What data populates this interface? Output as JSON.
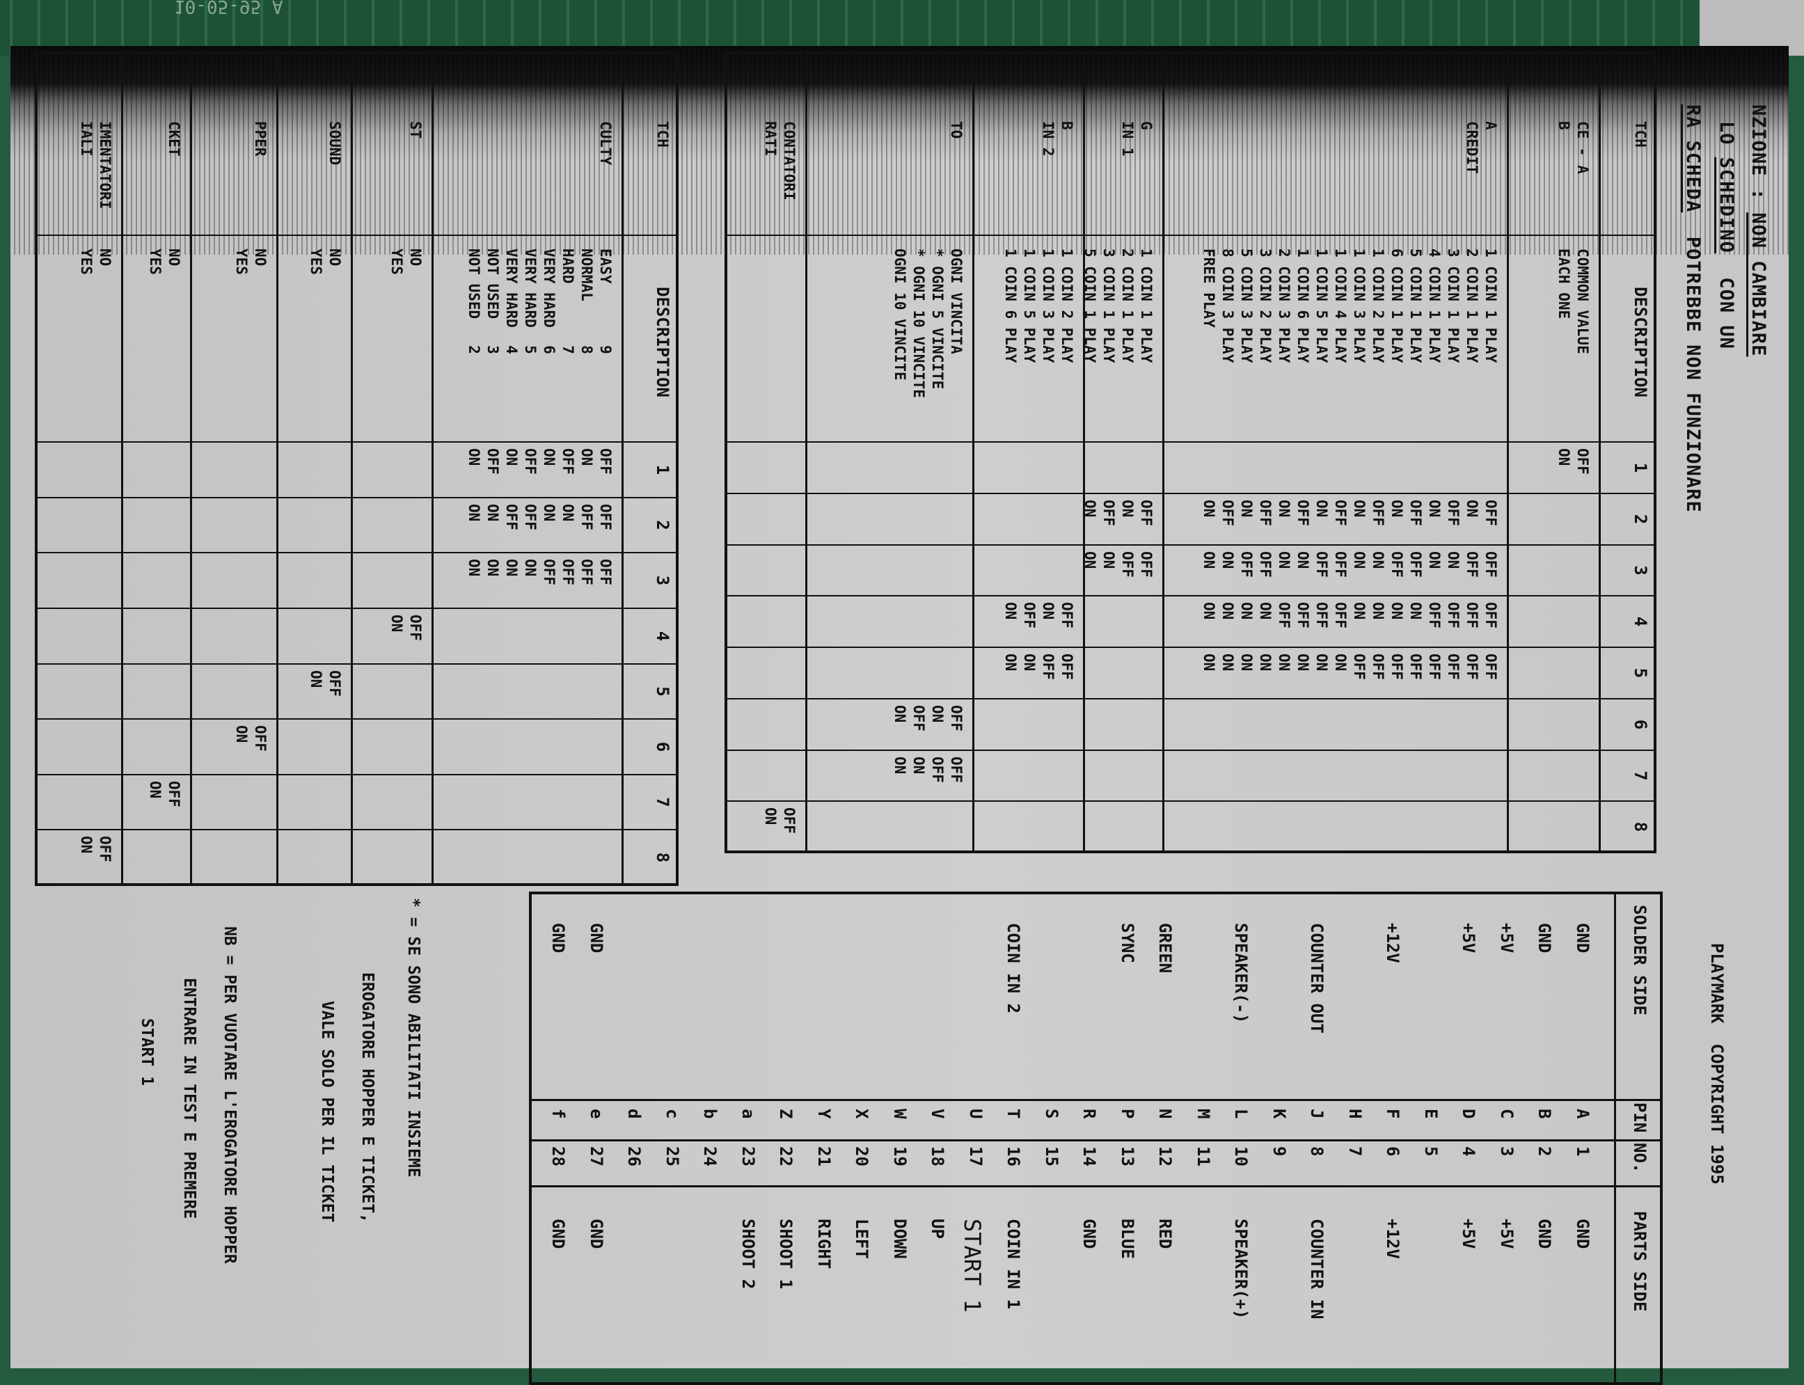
{
  "pcb_label": "10-05-95 A",
  "notice": {
    "line1_a": "NZIONE : ",
    "line1_b": "NON CAMBIARE",
    "line2_a": "LO ",
    "line2_b": "SCHEDINO",
    "line2_c": "  CON UN",
    "line3_a": "RA SCHEDA",
    "line3_b": "  POTREBBE NON FUNZIONARE"
  },
  "copyright": "PLAYMARK  COPYRIGHT 1995",
  "dip_a": {
    "header": {
      "label": [
        "TCH"
      ],
      "description": [
        "DESCRIPTION"
      ],
      "switches": [
        "1",
        "2",
        "3",
        "4",
        "5",
        "6",
        "7",
        "8"
      ]
    },
    "rows": [
      {
        "label": [
          "CE - A",
          "B"
        ],
        "description": [
          "COMMON VALUE",
          "EACH ONE"
        ],
        "cells": [
          [
            "OFF",
            "ON"
          ],
          [],
          [],
          [],
          [],
          [],
          [],
          []
        ]
      },
      {
        "label": [
          "A",
          "CREDIT"
        ],
        "description": [
          "1 COIN 1 PLAY",
          "2 COIN 1 PLAY",
          "3 COIN 1 PLAY",
          "4 COIN 1 PLAY",
          "5 COIN 1 PLAY",
          "6 COIN 1 PLAY",
          "1 COIN 2 PLAY",
          "1 COIN 3 PLAY",
          "1 COIN 4 PLAY",
          "1 COIN 5 PLAY",
          "1 COIN 6 PLAY",
          "2 COIN 3 PLAY",
          "3 COIN 2 PLAY",
          "5 COIN 3 PLAY",
          "8 COIN 3 PLAY",
          "FREE PLAY"
        ],
        "cells": [
          [],
          [
            "OFF",
            "ON",
            "OFF",
            "ON",
            "OFF",
            "ON",
            "OFF",
            "ON",
            "OFF",
            "ON",
            "OFF",
            "ON",
            "OFF",
            "ON",
            "OFF",
            "ON"
          ],
          [
            "OFF",
            "OFF",
            "ON",
            "ON",
            "OFF",
            "OFF",
            "ON",
            "ON",
            "OFF",
            "OFF",
            "ON",
            "ON",
            "OFF",
            "OFF",
            "ON",
            "ON"
          ],
          [
            "OFF",
            "OFF",
            "OFF",
            "OFF",
            "ON",
            "ON",
            "ON",
            "ON",
            "OFF",
            "OFF",
            "OFF",
            "OFF",
            "ON",
            "ON",
            "ON",
            "ON"
          ],
          [
            "OFF",
            "OFF",
            "OFF",
            "OFF",
            "OFF",
            "OFF",
            "OFF",
            "OFF",
            "ON",
            "ON",
            "ON",
            "ON",
            "ON",
            "ON",
            "ON",
            "ON"
          ],
          [],
          [],
          []
        ]
      },
      {
        "label": [
          "G",
          "IN 1"
        ],
        "description": [
          "1 COIN 1 PLAY",
          "2 COIN 1 PLAY",
          "3 COIN 1 PLAY",
          "5 COIN 1 PLAY"
        ],
        "cells": [
          [],
          [
            "OFF",
            "ON",
            "OFF",
            "ON"
          ],
          [
            "OFF",
            "OFF",
            "ON",
            "ON"
          ],
          [],
          [],
          [],
          [],
          []
        ]
      },
      {
        "label": [
          "B",
          "IN 2"
        ],
        "description": [
          "1 COIN 2 PLAY",
          "1 COIN 3 PLAY",
          "1 COIN 5 PLAY",
          "1 COIN 6 PLAY"
        ],
        "cells": [
          [],
          [],
          [],
          [
            "OFF",
            "ON",
            "OFF",
            "ON"
          ],
          [
            "OFF",
            "OFF",
            "ON",
            "ON"
          ],
          [],
          [],
          []
        ]
      },
      {
        "label": [
          "TO"
        ],
        "description": [
          "OGNI VINCITA",
          "* OGNI 5 VINCITE",
          "* OGNI 10 VINCITE",
          "OGNI 10 VINCITE"
        ],
        "cells": [
          [],
          [],
          [],
          [],
          [],
          [
            "OFF",
            "ON",
            "OFF",
            "ON"
          ],
          [
            "OFF",
            "OFF",
            "ON",
            "ON"
          ],
          []
        ]
      },
      {
        "label": [
          "CONTATORI",
          "RATI"
        ],
        "description": [],
        "cells": [
          [],
          [],
          [],
          [],
          [],
          [],
          [],
          [
            "OFF",
            "ON"
          ]
        ]
      }
    ]
  },
  "dip_b": {
    "header": {
      "label": [
        "TCH"
      ],
      "description": [
        "DESCRIPTION"
      ],
      "switches": [
        "1",
        "2",
        "3",
        "4",
        "5",
        "6",
        "7",
        "8"
      ]
    },
    "rows": [
      {
        "label": [
          "CULTY"
        ],
        "description": [
          "EASY       9",
          "NORMAL     8",
          "HARD       7",
          "VERY HARD  6",
          "VERY HARD  5",
          "VERY HARD  4",
          "NOT USED   3",
          "NOT USED   2"
        ],
        "cells": [
          [
            "OFF",
            "ON",
            "OFF",
            "ON",
            "OFF",
            "ON",
            "OFF",
            "ON"
          ],
          [
            "OFF",
            "OFF",
            "ON",
            "ON",
            "OFF",
            "OFF",
            "ON",
            "ON"
          ],
          [
            "OFF",
            "OFF",
            "OFF",
            "OFF",
            "ON",
            "ON",
            "ON",
            "ON"
          ],
          [],
          [],
          [],
          [],
          []
        ]
      },
      {
        "label": [
          "ST"
        ],
        "description": [
          "NO",
          "YES"
        ],
        "cells": [
          [],
          [],
          [],
          [
            "OFF",
            "ON"
          ],
          [],
          [],
          [],
          []
        ]
      },
      {
        "label": [
          "SOUND"
        ],
        "description": [
          "NO",
          "YES"
        ],
        "cells": [
          [],
          [],
          [],
          [],
          [
            "OFF",
            "ON"
          ],
          [],
          [],
          []
        ]
      },
      {
        "label": [
          "PPER"
        ],
        "description": [
          "NO",
          "YES"
        ],
        "cells": [
          [],
          [],
          [],
          [],
          [],
          [
            "OFF",
            "ON"
          ],
          [],
          []
        ]
      },
      {
        "label": [
          "CKET"
        ],
        "description": [
          "NO",
          "YES"
        ],
        "cells": [
          [],
          [],
          [],
          [],
          [],
          [],
          [
            "OFF",
            "ON"
          ],
          []
        ]
      },
      {
        "label": [
          "IMENTATORI",
          "IALI"
        ],
        "description": [
          "NO",
          "YES"
        ],
        "cells": [
          [],
          [],
          [],
          [],
          [],
          [],
          [],
          [
            "OFF",
            "ON"
          ]
        ]
      }
    ]
  },
  "pinout": {
    "headers": {
      "solder": "SOLDER SIDE",
      "pin": "PIN",
      "no": "NO.",
      "parts": "PARTS SIDE"
    },
    "pins": [
      {
        "letter": "A",
        "solder": "GND",
        "no": "1",
        "parts": "GND"
      },
      {
        "letter": "B",
        "solder": "GND",
        "no": "2",
        "parts": "GND"
      },
      {
        "letter": "C",
        "solder": "+5V",
        "no": "3",
        "parts": "+5V"
      },
      {
        "letter": "D",
        "solder": "+5V",
        "no": "4",
        "parts": "+5V"
      },
      {
        "letter": "E",
        "solder": "",
        "no": "5",
        "parts": ""
      },
      {
        "letter": "F",
        "solder": "+12V",
        "no": "6",
        "parts": "+12V"
      },
      {
        "letter": "H",
        "solder": "",
        "no": "7",
        "parts": ""
      },
      {
        "letter": "J",
        "solder": "COUNTER OUT",
        "no": "8",
        "parts": "COUNTER IN"
      },
      {
        "letter": "K",
        "solder": "",
        "no": "9",
        "parts": ""
      },
      {
        "letter": "L",
        "solder": "SPEAKER(-)",
        "no": "10",
        "parts": "SPEAKER(+)"
      },
      {
        "letter": "M",
        "solder": "",
        "no": "11",
        "parts": ""
      },
      {
        "letter": "N",
        "solder": "GREEN",
        "no": "12",
        "parts": "RED"
      },
      {
        "letter": "P",
        "solder": "SYNC",
        "no": "13",
        "parts": "BLUE"
      },
      {
        "letter": "R",
        "solder": "",
        "no": "14",
        "parts": "GND"
      },
      {
        "letter": "S",
        "solder": "",
        "no": "15",
        "parts": ""
      },
      {
        "letter": "T",
        "solder": "COIN IN 2",
        "no": "16",
        "parts": "COIN IN 1"
      },
      {
        "letter": "U",
        "solder": "",
        "no": "17",
        "parts": "START 1"
      },
      {
        "letter": "V",
        "solder": "",
        "no": "18",
        "parts": "UP"
      },
      {
        "letter": "W",
        "solder": "",
        "no": "19",
        "parts": "DOWN"
      },
      {
        "letter": "X",
        "solder": "",
        "no": "20",
        "parts": "LEFT"
      },
      {
        "letter": "Y",
        "solder": "",
        "no": "21",
        "parts": "RIGHT"
      },
      {
        "letter": "Z",
        "solder": "",
        "no": "22",
        "parts": "SHOOT 1"
      },
      {
        "letter": "a",
        "solder": "",
        "no": "23",
        "parts": "SHOOT 2"
      },
      {
        "letter": "b",
        "solder": "",
        "no": "24",
        "parts": ""
      },
      {
        "letter": "c",
        "solder": "",
        "no": "25",
        "parts": ""
      },
      {
        "letter": "d",
        "solder": "",
        "no": "26",
        "parts": ""
      },
      {
        "letter": "e",
        "solder": "GND",
        "no": "27",
        "parts": "GND"
      },
      {
        "letter": "f",
        "solder": "GND",
        "no": "28",
        "parts": "GND"
      }
    ]
  },
  "notes": {
    "asterisk": [
      "* = SE SONO ABILITATI INSIEME",
      "EROGATORE HOPPER E TICKET,",
      "VALE SOLO PER IL TICKET"
    ],
    "nb": [
      "NB = PER VUOTARE L'EROGATORE HOPPER",
      "ENTRARE IN TEST E PREMERE",
      "START 1"
    ]
  }
}
